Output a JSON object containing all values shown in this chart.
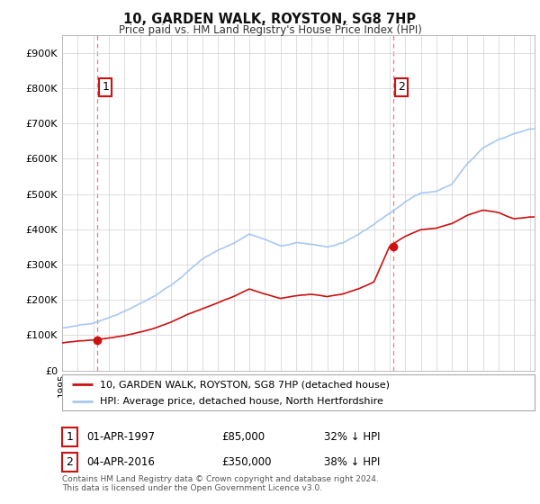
{
  "title": "10, GARDEN WALK, ROYSTON, SG8 7HP",
  "subtitle": "Price paid vs. HM Land Registry's House Price Index (HPI)",
  "ylabel_ticks": [
    "£0",
    "£100K",
    "£200K",
    "£300K",
    "£400K",
    "£500K",
    "£600K",
    "£700K",
    "£800K",
    "£900K"
  ],
  "ytick_values": [
    0,
    100000,
    200000,
    300000,
    400000,
    500000,
    600000,
    700000,
    800000,
    900000
  ],
  "ylim": [
    0,
    950000
  ],
  "xlim_start": 1995.0,
  "xlim_end": 2025.3,
  "transaction1_date": 1997.25,
  "transaction1_price": 85000,
  "transaction2_date": 2016.25,
  "transaction2_price": 350000,
  "transaction1_label": "1",
  "transaction2_label": "2",
  "legend_line1": "10, GARDEN WALK, ROYSTON, SG8 7HP (detached house)",
  "legend_line2": "HPI: Average price, detached house, North Hertfordshire",
  "footer": "Contains HM Land Registry data © Crown copyright and database right 2024.\nThis data is licensed under the Open Government Licence v3.0.",
  "hpi_color": "#a8c8f0",
  "price_color": "#cc1111",
  "vline_color": "#e08080",
  "grid_color": "#d8d8d8",
  "background_color": "#ffffff",
  "hpi_base": [
    120000,
    128000,
    135000,
    150000,
    168000,
    188000,
    210000,
    240000,
    278000,
    315000,
    340000,
    360000,
    385000,
    370000,
    350000,
    360000,
    355000,
    348000,
    360000,
    385000,
    415000,
    445000,
    480000,
    505000,
    510000,
    530000,
    590000,
    635000,
    660000,
    675000,
    685000
  ],
  "price_base": [
    78000,
    82000,
    85000,
    90000,
    97000,
    107000,
    120000,
    137000,
    158000,
    175000,
    192000,
    210000,
    232000,
    218000,
    205000,
    212000,
    215000,
    208000,
    215000,
    230000,
    250000,
    350000,
    378000,
    398000,
    402000,
    415000,
    440000,
    455000,
    448000,
    430000,
    435000
  ],
  "years_base_start": 1995
}
